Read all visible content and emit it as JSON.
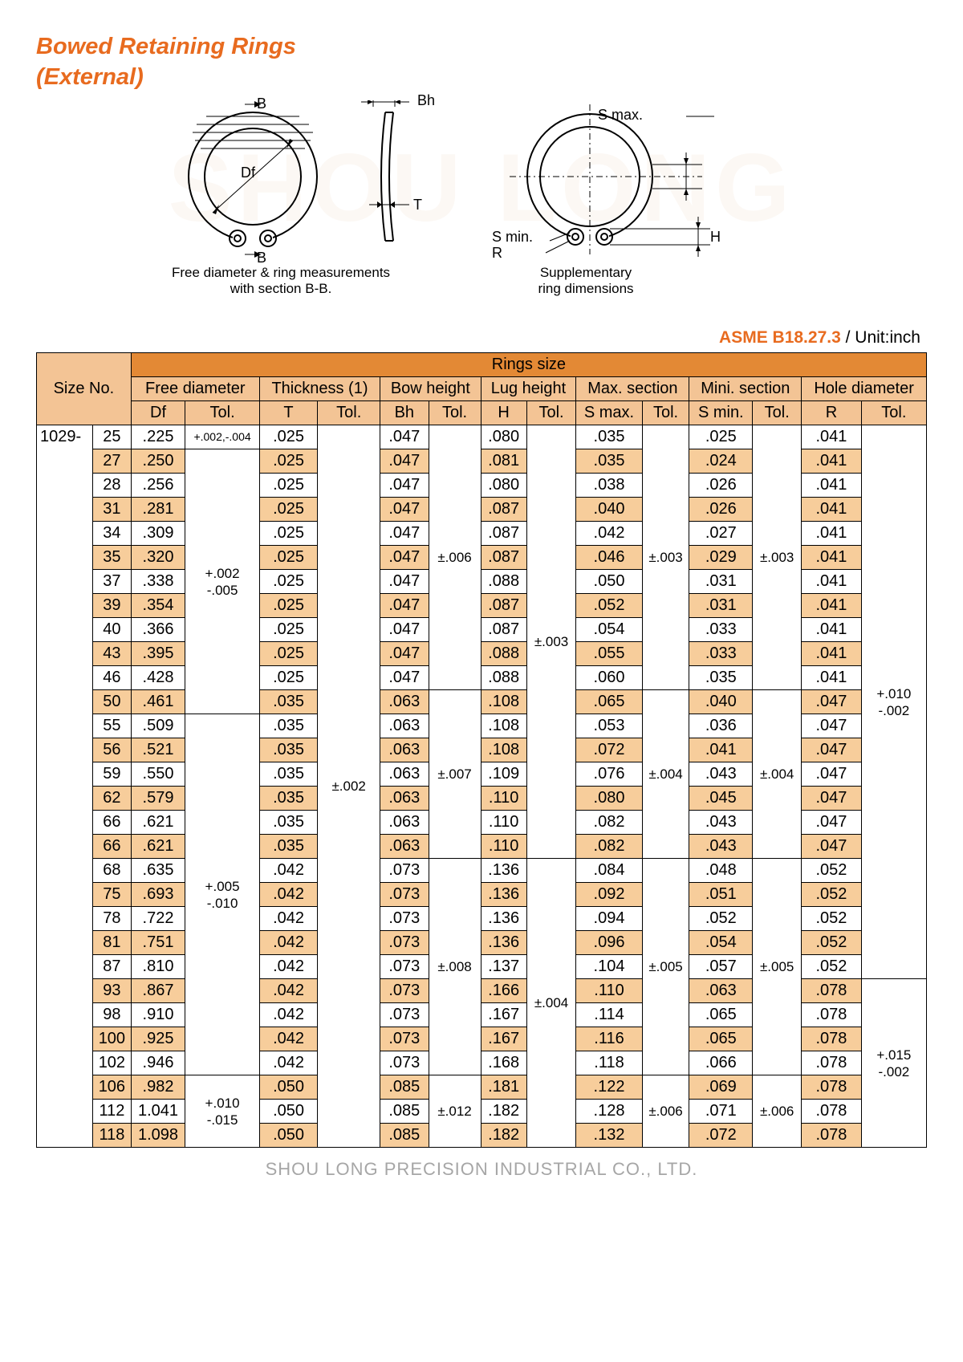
{
  "title_line1": "Bowed Retaining Rings",
  "title_line2": "(External)",
  "watermark": "SHOU LONG",
  "diagram": {
    "caption1": "Free diameter & ring measurements",
    "caption1b": "with section B-B.",
    "caption2": "Supplementary",
    "caption2b": "ring dimensions",
    "Df": "Df",
    "B_top": "B",
    "B_bot": "B",
    "Bh": "Bh",
    "T": "T",
    "Smin": "S min.",
    "R": "R",
    "H": "H",
    "Smax": "S max."
  },
  "standard": {
    "spec": "ASME B18.27.3",
    "unit": " / Unit:inch"
  },
  "headers": {
    "rings_size": "Rings size",
    "size_no": "Size No.",
    "free_dia": "Free diameter",
    "thickness": "Thickness (1)",
    "bow": "Bow height",
    "lug": "Lug height",
    "max_sec": "Max. section",
    "min_sec": "Mini. section",
    "hole": "Hole diameter",
    "Df": "Df",
    "T": "T",
    "Bh": "Bh",
    "H": "H",
    "Smax": "S max.",
    "Smin": "S min.",
    "R": "R",
    "Tol": "Tol."
  },
  "series": "1029-",
  "rows": [
    {
      "sz": "25",
      "Df": ".225",
      "T": ".025",
      "Bh": ".047",
      "H": ".080",
      "Smax": ".035",
      "Smin": ".025",
      "R": ".041"
    },
    {
      "sz": "27",
      "Df": ".250",
      "T": ".025",
      "Bh": ".047",
      "H": ".081",
      "Smax": ".035",
      "Smin": ".024",
      "R": ".041"
    },
    {
      "sz": "28",
      "Df": ".256",
      "T": ".025",
      "Bh": ".047",
      "H": ".080",
      "Smax": ".038",
      "Smin": ".026",
      "R": ".041"
    },
    {
      "sz": "31",
      "Df": ".281",
      "T": ".025",
      "Bh": ".047",
      "H": ".087",
      "Smax": ".040",
      "Smin": ".026",
      "R": ".041"
    },
    {
      "sz": "34",
      "Df": ".309",
      "T": ".025",
      "Bh": ".047",
      "H": ".087",
      "Smax": ".042",
      "Smin": ".027",
      "R": ".041"
    },
    {
      "sz": "35",
      "Df": ".320",
      "T": ".025",
      "Bh": ".047",
      "H": ".087",
      "Smax": ".046",
      "Smin": ".029",
      "R": ".041"
    },
    {
      "sz": "37",
      "Df": ".338",
      "T": ".025",
      "Bh": ".047",
      "H": ".088",
      "Smax": ".050",
      "Smin": ".031",
      "R": ".041"
    },
    {
      "sz": "39",
      "Df": ".354",
      "T": ".025",
      "Bh": ".047",
      "H": ".087",
      "Smax": ".052",
      "Smin": ".031",
      "R": ".041"
    },
    {
      "sz": "40",
      "Df": ".366",
      "T": ".025",
      "Bh": ".047",
      "H": ".087",
      "Smax": ".054",
      "Smin": ".033",
      "R": ".041"
    },
    {
      "sz": "43",
      "Df": ".395",
      "T": ".025",
      "Bh": ".047",
      "H": ".088",
      "Smax": ".055",
      "Smin": ".033",
      "R": ".041"
    },
    {
      "sz": "46",
      "Df": ".428",
      "T": ".025",
      "Bh": ".047",
      "H": ".088",
      "Smax": ".060",
      "Smin": ".035",
      "R": ".041"
    },
    {
      "sz": "50",
      "Df": ".461",
      "T": ".035",
      "Bh": ".063",
      "H": ".108",
      "Smax": ".065",
      "Smin": ".040",
      "R": ".047"
    },
    {
      "sz": "55",
      "Df": ".509",
      "T": ".035",
      "Bh": ".063",
      "H": ".108",
      "Smax": ".053",
      "Smin": ".036",
      "R": ".047"
    },
    {
      "sz": "56",
      "Df": ".521",
      "T": ".035",
      "Bh": ".063",
      "H": ".108",
      "Smax": ".072",
      "Smin": ".041",
      "R": ".047"
    },
    {
      "sz": "59",
      "Df": ".550",
      "T": ".035",
      "Bh": ".063",
      "H": ".109",
      "Smax": ".076",
      "Smin": ".043",
      "R": ".047"
    },
    {
      "sz": "62",
      "Df": ".579",
      "T": ".035",
      "Bh": ".063",
      "H": ".110",
      "Smax": ".080",
      "Smin": ".045",
      "R": ".047"
    },
    {
      "sz": "66",
      "Df": ".621",
      "T": ".035",
      "Bh": ".063",
      "H": ".110",
      "Smax": ".082",
      "Smin": ".043",
      "R": ".047"
    },
    {
      "sz": "66",
      "Df": ".621",
      "T": ".035",
      "Bh": ".063",
      "H": ".110",
      "Smax": ".082",
      "Smin": ".043",
      "R": ".047"
    },
    {
      "sz": "68",
      "Df": ".635",
      "T": ".042",
      "Bh": ".073",
      "H": ".136",
      "Smax": ".084",
      "Smin": ".048",
      "R": ".052"
    },
    {
      "sz": "75",
      "Df": ".693",
      "T": ".042",
      "Bh": ".073",
      "H": ".136",
      "Smax": ".092",
      "Smin": ".051",
      "R": ".052"
    },
    {
      "sz": "78",
      "Df": ".722",
      "T": ".042",
      "Bh": ".073",
      "H": ".136",
      "Smax": ".094",
      "Smin": ".052",
      "R": ".052"
    },
    {
      "sz": "81",
      "Df": ".751",
      "T": ".042",
      "Bh": ".073",
      "H": ".136",
      "Smax": ".096",
      "Smin": ".054",
      "R": ".052"
    },
    {
      "sz": "87",
      "Df": ".810",
      "T": ".042",
      "Bh": ".073",
      "H": ".137",
      "Smax": ".104",
      "Smin": ".057",
      "R": ".052"
    },
    {
      "sz": "93",
      "Df": ".867",
      "T": ".042",
      "Bh": ".073",
      "H": ".166",
      "Smax": ".110",
      "Smin": ".063",
      "R": ".078"
    },
    {
      "sz": "98",
      "Df": ".910",
      "T": ".042",
      "Bh": ".073",
      "H": ".167",
      "Smax": ".114",
      "Smin": ".065",
      "R": ".078"
    },
    {
      "sz": "100",
      "Df": ".925",
      "T": ".042",
      "Bh": ".073",
      "H": ".167",
      "Smax": ".116",
      "Smin": ".065",
      "R": ".078"
    },
    {
      "sz": "102",
      "Df": ".946",
      "T": ".042",
      "Bh": ".073",
      "H": ".168",
      "Smax": ".118",
      "Smin": ".066",
      "R": ".078"
    },
    {
      "sz": "106",
      "Df": ".982",
      "T": ".050",
      "Bh": ".085",
      "H": ".181",
      "Smax": ".122",
      "Smin": ".069",
      "R": ".078"
    },
    {
      "sz": "112",
      "Df": "1.041",
      "T": ".050",
      "Bh": ".085",
      "H": ".182",
      "Smax": ".128",
      "Smin": ".071",
      "R": ".078"
    },
    {
      "sz": "118",
      "Df": "1.098",
      "T": ".050",
      "Bh": ".085",
      "H": ".182",
      "Smax": ".132",
      "Smin": ".072",
      "R": ".078"
    }
  ],
  "tol": {
    "Df_25": "+.002,-.004",
    "Df_g1": "+.002\n-.005",
    "Df_g2": "+.005\n-.010",
    "Df_g3": "+.010\n-.015",
    "T_all": "±.002",
    "Bh_g1": "±.006",
    "Bh_g2": "±.007",
    "Bh_g3": "±.008",
    "Bh_g4": "±.012",
    "H_g1": "±.003",
    "H_g2": "±.004",
    "Smax_g1": "±.003",
    "Smax_g2": "±.004",
    "Smax_g3": "±.005",
    "Smax_g4": "±.006",
    "Smin_g1": "±.003",
    "Smin_g2": "±.004",
    "Smin_g3": "±.005",
    "Smin_g4": "±.006",
    "R_g1": "+.010\n-.002",
    "R_g2": "+.015\n-.002"
  },
  "footer": "SHOU LONG PRECISION INDUSTRIAL CO., LTD."
}
